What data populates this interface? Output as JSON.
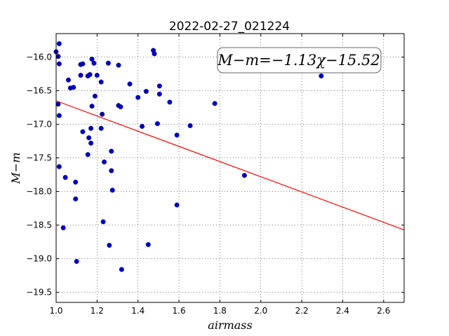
{
  "chart_data": {
    "type": "scatter",
    "title": "2022-02-27_021224",
    "xlabel": "airmass",
    "ylabel": "M−m",
    "xlim": [
      1.0,
      2.7
    ],
    "ylim": [
      -19.65,
      -15.65
    ],
    "x_ticks": [
      "1.0",
      "1.2",
      "1.4",
      "1.6",
      "1.8",
      "2.0",
      "2.2",
      "2.4",
      "2.6"
    ],
    "x_tick_values": [
      1.0,
      1.2,
      1.4,
      1.6,
      1.8,
      2.0,
      2.2,
      2.4,
      2.6
    ],
    "y_ticks": [
      "−16.0",
      "−16.5",
      "−17.0",
      "−17.5",
      "−18.0",
      "−18.5",
      "−19.0",
      "−19.5"
    ],
    "y_tick_values": [
      -16.0,
      -16.5,
      -17.0,
      -17.5,
      -18.0,
      -18.5,
      -19.0,
      -19.5
    ],
    "grid": true,
    "annotation": "M−m=−1.13χ−15.52",
    "fit": {
      "slope": -1.13,
      "intercept": -15.52,
      "color": "#ff0000"
    },
    "point_color": "#0000cc",
    "points": [
      [
        1.0,
        -15.92
      ],
      [
        1.015,
        -15.8
      ],
      [
        1.01,
        -15.99
      ],
      [
        1.015,
        -16.1
      ],
      [
        1.01,
        -16.7
      ],
      [
        1.015,
        -16.87
      ],
      [
        1.015,
        -17.63
      ],
      [
        1.045,
        -17.79
      ],
      [
        1.035,
        -18.54
      ],
      [
        1.06,
        -16.34
      ],
      [
        1.07,
        -16.46
      ],
      [
        1.085,
        -16.45
      ],
      [
        1.095,
        -17.86
      ],
      [
        1.095,
        -18.11
      ],
      [
        1.1,
        -19.04
      ],
      [
        1.12,
        -16.11
      ],
      [
        1.13,
        -16.1
      ],
      [
        1.12,
        -16.27
      ],
      [
        1.13,
        -17.11
      ],
      [
        1.155,
        -16.28
      ],
      [
        1.165,
        -16.26
      ],
      [
        1.175,
        -16.03
      ],
      [
        1.185,
        -16.09
      ],
      [
        1.16,
        -17.2
      ],
      [
        1.155,
        -17.45
      ],
      [
        1.17,
        -17.06
      ],
      [
        1.17,
        -17.28
      ],
      [
        1.175,
        -16.73
      ],
      [
        1.19,
        -16.58
      ],
      [
        1.2,
        -16.27
      ],
      [
        1.22,
        -16.37
      ],
      [
        1.225,
        -16.85
      ],
      [
        1.22,
        -17.06
      ],
      [
        1.235,
        -17.56
      ],
      [
        1.23,
        -18.45
      ],
      [
        1.255,
        -16.09
      ],
      [
        1.26,
        -18.8
      ],
      [
        1.27,
        -17.4
      ],
      [
        1.27,
        -17.69
      ],
      [
        1.275,
        -17.98
      ],
      [
        1.305,
        -16.12
      ],
      [
        1.305,
        -16.72
      ],
      [
        1.315,
        -16.74
      ],
      [
        1.32,
        -19.16
      ],
      [
        1.36,
        -16.4
      ],
      [
        1.4,
        -16.6
      ],
      [
        1.42,
        -17.03
      ],
      [
        1.44,
        -16.51
      ],
      [
        1.45,
        -18.79
      ],
      [
        1.475,
        -15.9
      ],
      [
        1.48,
        -15.95
      ],
      [
        1.495,
        -16.99
      ],
      [
        1.505,
        -16.43
      ],
      [
        1.505,
        -16.55
      ],
      [
        1.555,
        -16.67
      ],
      [
        1.59,
        -17.16
      ],
      [
        1.59,
        -18.2
      ],
      [
        1.655,
        -17.02
      ],
      [
        1.775,
        -16.69
      ],
      [
        1.92,
        -17.76
      ],
      [
        2.295,
        -16.28
      ]
    ]
  }
}
